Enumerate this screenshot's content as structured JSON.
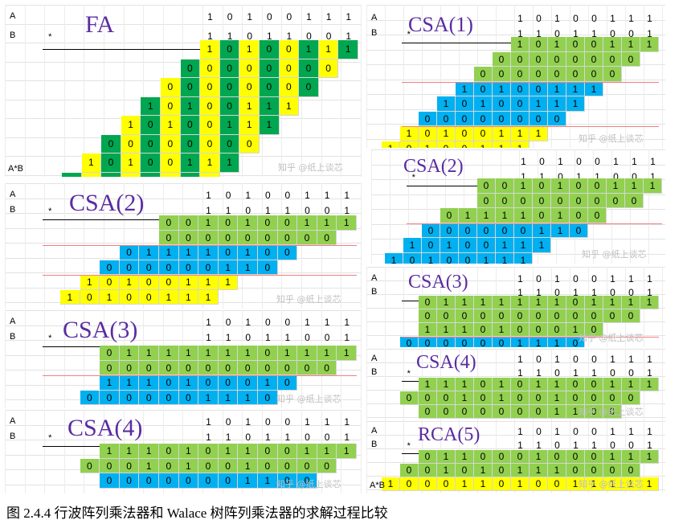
{
  "caption": "图 2.4.4 行波阵列乘法器和 Walace 树阵列乘法器的求解过程比较",
  "watermark": "知乎 @纸上谈芯",
  "colors": {
    "green": "#92d050",
    "yellow": "#ffff00",
    "blue": "#00b0f0",
    "dgreen": "#00a650",
    "red": "#f08080"
  },
  "panels": [
    {
      "id": "fa",
      "title": "FA",
      "row_labels": [
        "A",
        "B"
      ],
      "star": "*",
      "result_label": "A*B",
      "operands": [
        "10100111",
        "11011001"
      ],
      "rows": [
        {
          "bits": "10100111",
          "shift": 0,
          "color": "checker"
        },
        {
          "bits": "00000000",
          "shift": 1,
          "color": "checker"
        },
        {
          "bits": "00000000",
          "shift": 2,
          "color": "checker"
        },
        {
          "bits": "10100111",
          "shift": 3,
          "color": "checker"
        },
        {
          "bits": "10100111",
          "shift": 4,
          "color": "checker"
        },
        {
          "bits": "00000000",
          "shift": 5,
          "color": "checker"
        },
        {
          "bits": "10100111",
          "shift": 6,
          "color": "checker"
        },
        {
          "bits": "10100111",
          "shift": 7,
          "color": "checker"
        }
      ]
    },
    {
      "id": "csa1",
      "title": "CSA(1)",
      "row_labels": [
        "A",
        "B"
      ],
      "star": "*",
      "operands": [
        "10100111",
        "11011001"
      ],
      "rows": [
        {
          "bits": "10100111",
          "shift": 0,
          "color": "green"
        },
        {
          "bits": "00000000",
          "shift": 1,
          "color": "green"
        },
        {
          "bits": "00000000",
          "shift": 2,
          "color": "green"
        },
        {
          "bits": "10100111",
          "shift": 3,
          "color": "blue"
        },
        {
          "bits": "10100111",
          "shift": 4,
          "color": "blue"
        },
        {
          "bits": "00000000",
          "shift": 5,
          "color": "blue"
        },
        {
          "bits": "10100111",
          "shift": 6,
          "color": "yellow"
        },
        {
          "bits": "10100111",
          "shift": 7,
          "color": "yellow"
        }
      ]
    },
    {
      "id": "csa2a",
      "title": "CSA(2)",
      "row_labels": [
        "A",
        "B"
      ],
      "star": "*",
      "operands": [
        "10100111",
        "11011001"
      ],
      "rows": [
        {
          "bits": "0010100111",
          "shift": 0,
          "color": "green"
        },
        {
          "bits": "000000000",
          "shift": 1,
          "color": "green"
        },
        {
          "bits": "011110100",
          "shift": 3,
          "color": "blue"
        },
        {
          "bits": "000000110",
          "shift": 4,
          "color": "blue"
        },
        {
          "bits": "10100111",
          "shift": 6,
          "color": "yellow"
        },
        {
          "bits": "10100111",
          "shift": 7,
          "color": "yellow"
        }
      ]
    },
    {
      "id": "csa2b",
      "title": "CSA(2)",
      "row_labels": [],
      "star": "*",
      "operands": [
        "10100111",
        "11011001"
      ],
      "rows": [
        {
          "bits": "0010100111",
          "shift": 0,
          "color": "green"
        },
        {
          "bits": "000000000",
          "shift": 1,
          "color": "green"
        },
        {
          "bits": "011110100",
          "shift": 3,
          "color": "green"
        },
        {
          "bits": "000000110",
          "shift": 4,
          "color": "blue"
        },
        {
          "bits": "10100111",
          "shift": 6,
          "color": "blue"
        },
        {
          "bits": "10100111",
          "shift": 7,
          "color": "blue"
        }
      ]
    },
    {
      "id": "csa3a",
      "title": "CSA(3)",
      "row_labels": [
        "A",
        "B"
      ],
      "star": "*",
      "operands": [
        "10100111",
        "11011001"
      ],
      "rows": [
        {
          "bits": "0111111101111",
          "shift": 0,
          "color": "green"
        },
        {
          "bits": "000000000000",
          "shift": 1,
          "color": "green"
        },
        {
          "bits": "1110100010",
          "shift": 3,
          "color": "blue"
        },
        {
          "bits": "0000001110",
          "shift": 4,
          "color": "blue"
        }
      ]
    },
    {
      "id": "csa3b",
      "title": "CSA(3)",
      "row_labels": [
        "A",
        "B"
      ],
      "star": "",
      "operands": [
        "10100111",
        "11011001"
      ],
      "rows": [
        {
          "bits": "0111111101111",
          "shift": 0,
          "color": "green"
        },
        {
          "bits": "000000000000",
          "shift": 1,
          "color": "green"
        },
        {
          "bits": "1110100010",
          "shift": 3,
          "color": "green"
        },
        {
          "bits": "0000001110",
          "shift": 4,
          "color": "blue"
        }
      ]
    },
    {
      "id": "csa4a",
      "title": "CSA(4)",
      "row_labels": [
        "A",
        "B"
      ],
      "star": "*",
      "operands": [
        "10100111",
        "11011001"
      ],
      "rows": [
        {
          "bits": "1110101100111",
          "shift": 0,
          "color": "green"
        },
        {
          "bits": "0001010010000",
          "shift": 1,
          "color": "green"
        },
        {
          "bits": "00000001100",
          "shift": 2,
          "color": "blue"
        }
      ]
    },
    {
      "id": "csa4b",
      "title": "CSA(4)",
      "row_labels": [
        "A",
        "B"
      ],
      "star": "*",
      "operands": [
        "10100111",
        "11011001"
      ],
      "rows": [
        {
          "bits": "1110101100111",
          "shift": 0,
          "color": "green"
        },
        {
          "bits": "0001010010000",
          "shift": 1,
          "color": "green"
        },
        {
          "bits": "00000001100",
          "shift": 2,
          "color": "green"
        }
      ]
    },
    {
      "id": "rca5",
      "title": "RCA(5)",
      "row_labels": [
        "A",
        "B"
      ],
      "star": "*",
      "result_label": "A*B",
      "operands": [
        "10100111",
        "11011001"
      ],
      "rows": [
        {
          "bits": "0110001000111",
          "shift": 0,
          "color": "green"
        },
        {
          "bits": "0010101110000",
          "shift": 1,
          "color": "green"
        },
        {
          "bits": "100011010011111",
          "shift": 0,
          "color": "yellow"
        }
      ]
    }
  ]
}
